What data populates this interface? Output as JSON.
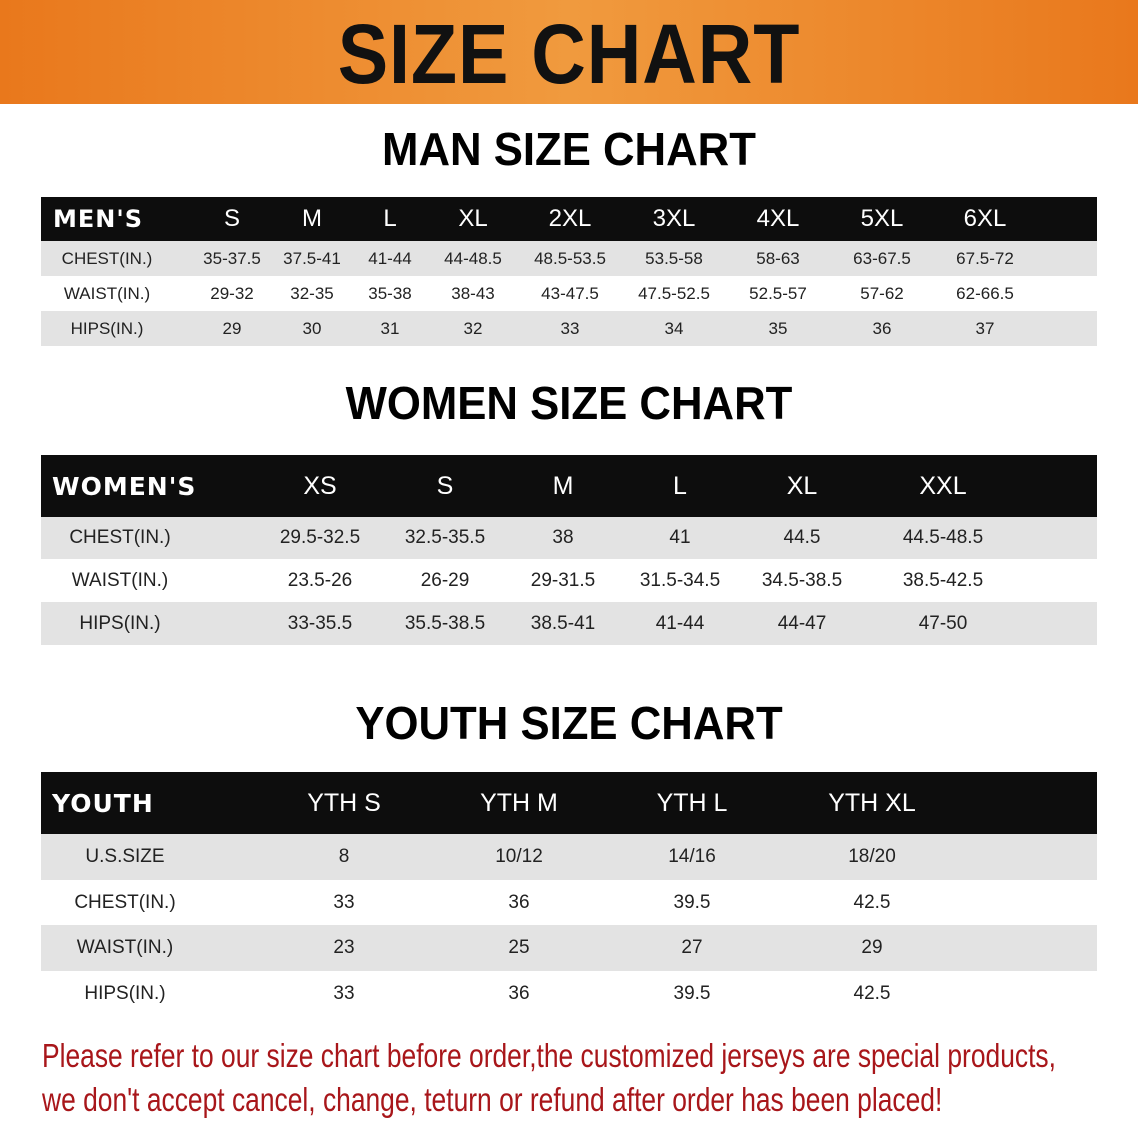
{
  "title": "SIZE CHART",
  "men": {
    "title": "MAN SIZE CHART",
    "header": [
      "MEN'S",
      "S",
      "M",
      "L",
      "XL",
      "2XL",
      "3XL",
      "4XL",
      "5XL",
      "6XL"
    ],
    "rows": [
      [
        "CHEST(IN.)",
        "35-37.5",
        "37.5-41",
        "41-44",
        "44-48.5",
        "48.5-53.5",
        "53.5-58",
        "58-63",
        "63-67.5",
        "67.5-72"
      ],
      [
        "WAIST(IN.)",
        "29-32",
        "32-35",
        "35-38",
        "38-43",
        "43-47.5",
        "47.5-52.5",
        "52.5-57",
        "57-62",
        "62-66.5"
      ],
      [
        "HIPS(IN.)",
        "29",
        "30",
        "31",
        "32",
        "33",
        "34",
        "35",
        "36",
        "37"
      ]
    ]
  },
  "women": {
    "title": "WOMEN SIZE CHART",
    "header": [
      "WOMEN'S",
      "XS",
      "S",
      "M",
      "L",
      "XL",
      "XXL"
    ],
    "rows": [
      [
        "CHEST(IN.)",
        "29.5-32.5",
        "32.5-35.5",
        "38",
        "41",
        "44.5",
        "44.5-48.5"
      ],
      [
        "WAIST(IN.)",
        "23.5-26",
        "26-29",
        "29-31.5",
        "31.5-34.5",
        "34.5-38.5",
        "38.5-42.5"
      ],
      [
        "HIPS(IN.)",
        "33-35.5",
        "35.5-38.5",
        "38.5-41",
        "41-44",
        "44-47",
        "47-50"
      ]
    ]
  },
  "youth": {
    "title": "YOUTH SIZE CHART",
    "header": [
      "YOUTH",
      "YTH S",
      "YTH M",
      "YTH L",
      "YTH XL"
    ],
    "rows": [
      [
        "U.S.SIZE",
        "8",
        "10/12",
        "14/16",
        "18/20"
      ],
      [
        "CHEST(IN.)",
        "33",
        "36",
        "39.5",
        "42.5"
      ],
      [
        "WAIST(IN.)",
        "23",
        "25",
        "27",
        "29"
      ],
      [
        "HIPS(IN.)",
        "33",
        "36",
        "39.5",
        "42.5"
      ]
    ]
  },
  "notice": {
    "line1": "Please refer to our size chart before order,the customized jerseys are special products,",
    "line2": "we don't accept cancel, change, teturn or refund after order has been placed!"
  },
  "colors": {
    "banner": "#e9781c",
    "header_bg": "#0d0d0d",
    "stripe": "#e3e3e3",
    "notice": "#a8161a"
  }
}
